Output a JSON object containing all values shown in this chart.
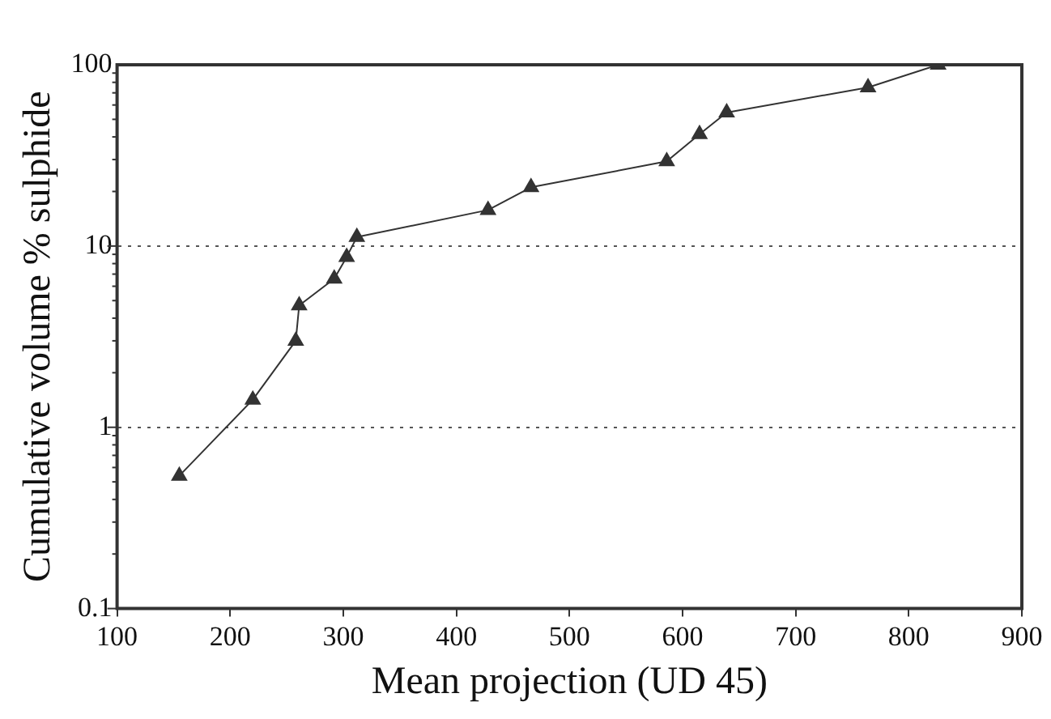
{
  "chart_data": {
    "type": "line",
    "xlabel": "Mean projection (UD 45)",
    "ylabel": "Cumulative volume % sulphide",
    "x": [
      155,
      220,
      258,
      261,
      292,
      303,
      312,
      428,
      466,
      586,
      615,
      639,
      764,
      826
    ],
    "series": [
      {
        "color": "#333333",
        "values": [
          0.54,
          1.42,
          3.0,
          4.7,
          6.6,
          8.7,
          11.2,
          15.8,
          21.1,
          29.3,
          41.4,
          54.5,
          75,
          100
        ]
      }
    ],
    "xlim": [
      100,
      900
    ],
    "xticks": [
      100,
      200,
      300,
      400,
      500,
      600,
      700,
      800,
      900
    ],
    "ylim": [
      0.1,
      100
    ],
    "yticks": [
      0.1,
      1,
      10,
      100
    ],
    "log": "y",
    "grid": "y",
    "marker": "triangle",
    "line_style": "solid",
    "legend": false
  }
}
